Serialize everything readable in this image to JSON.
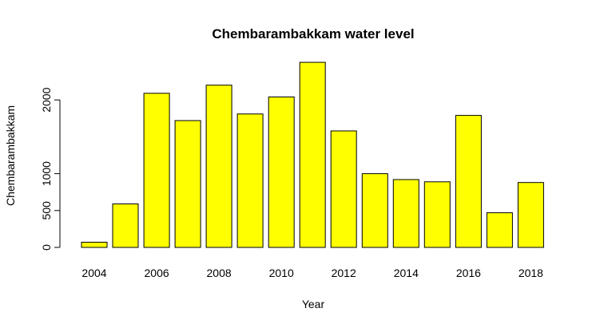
{
  "chart_data": {
    "type": "bar",
    "title": "Chembarambakkam water level",
    "xlabel": "Year",
    "ylabel": "Chembarambakkam",
    "categories": [
      "2004",
      "2005",
      "2006",
      "2007",
      "2008",
      "2009",
      "2010",
      "2011",
      "2012",
      "2013",
      "2014",
      "2015",
      "2016",
      "2017",
      "2018"
    ],
    "x_tick_labels": [
      "2004",
      "2006",
      "2008",
      "2010",
      "2012",
      "2014",
      "2016",
      "2018"
    ],
    "values": [
      70,
      590,
      2090,
      1720,
      2200,
      1810,
      2040,
      2510,
      1580,
      1000,
      920,
      890,
      1790,
      470,
      880
    ],
    "ylim": [
      0,
      2650
    ],
    "y_ticks": [
      0,
      500,
      1000,
      2000
    ],
    "bar_color": "#ffff00",
    "bar_border_color": "#000000",
    "grid": false,
    "legend": "none"
  }
}
